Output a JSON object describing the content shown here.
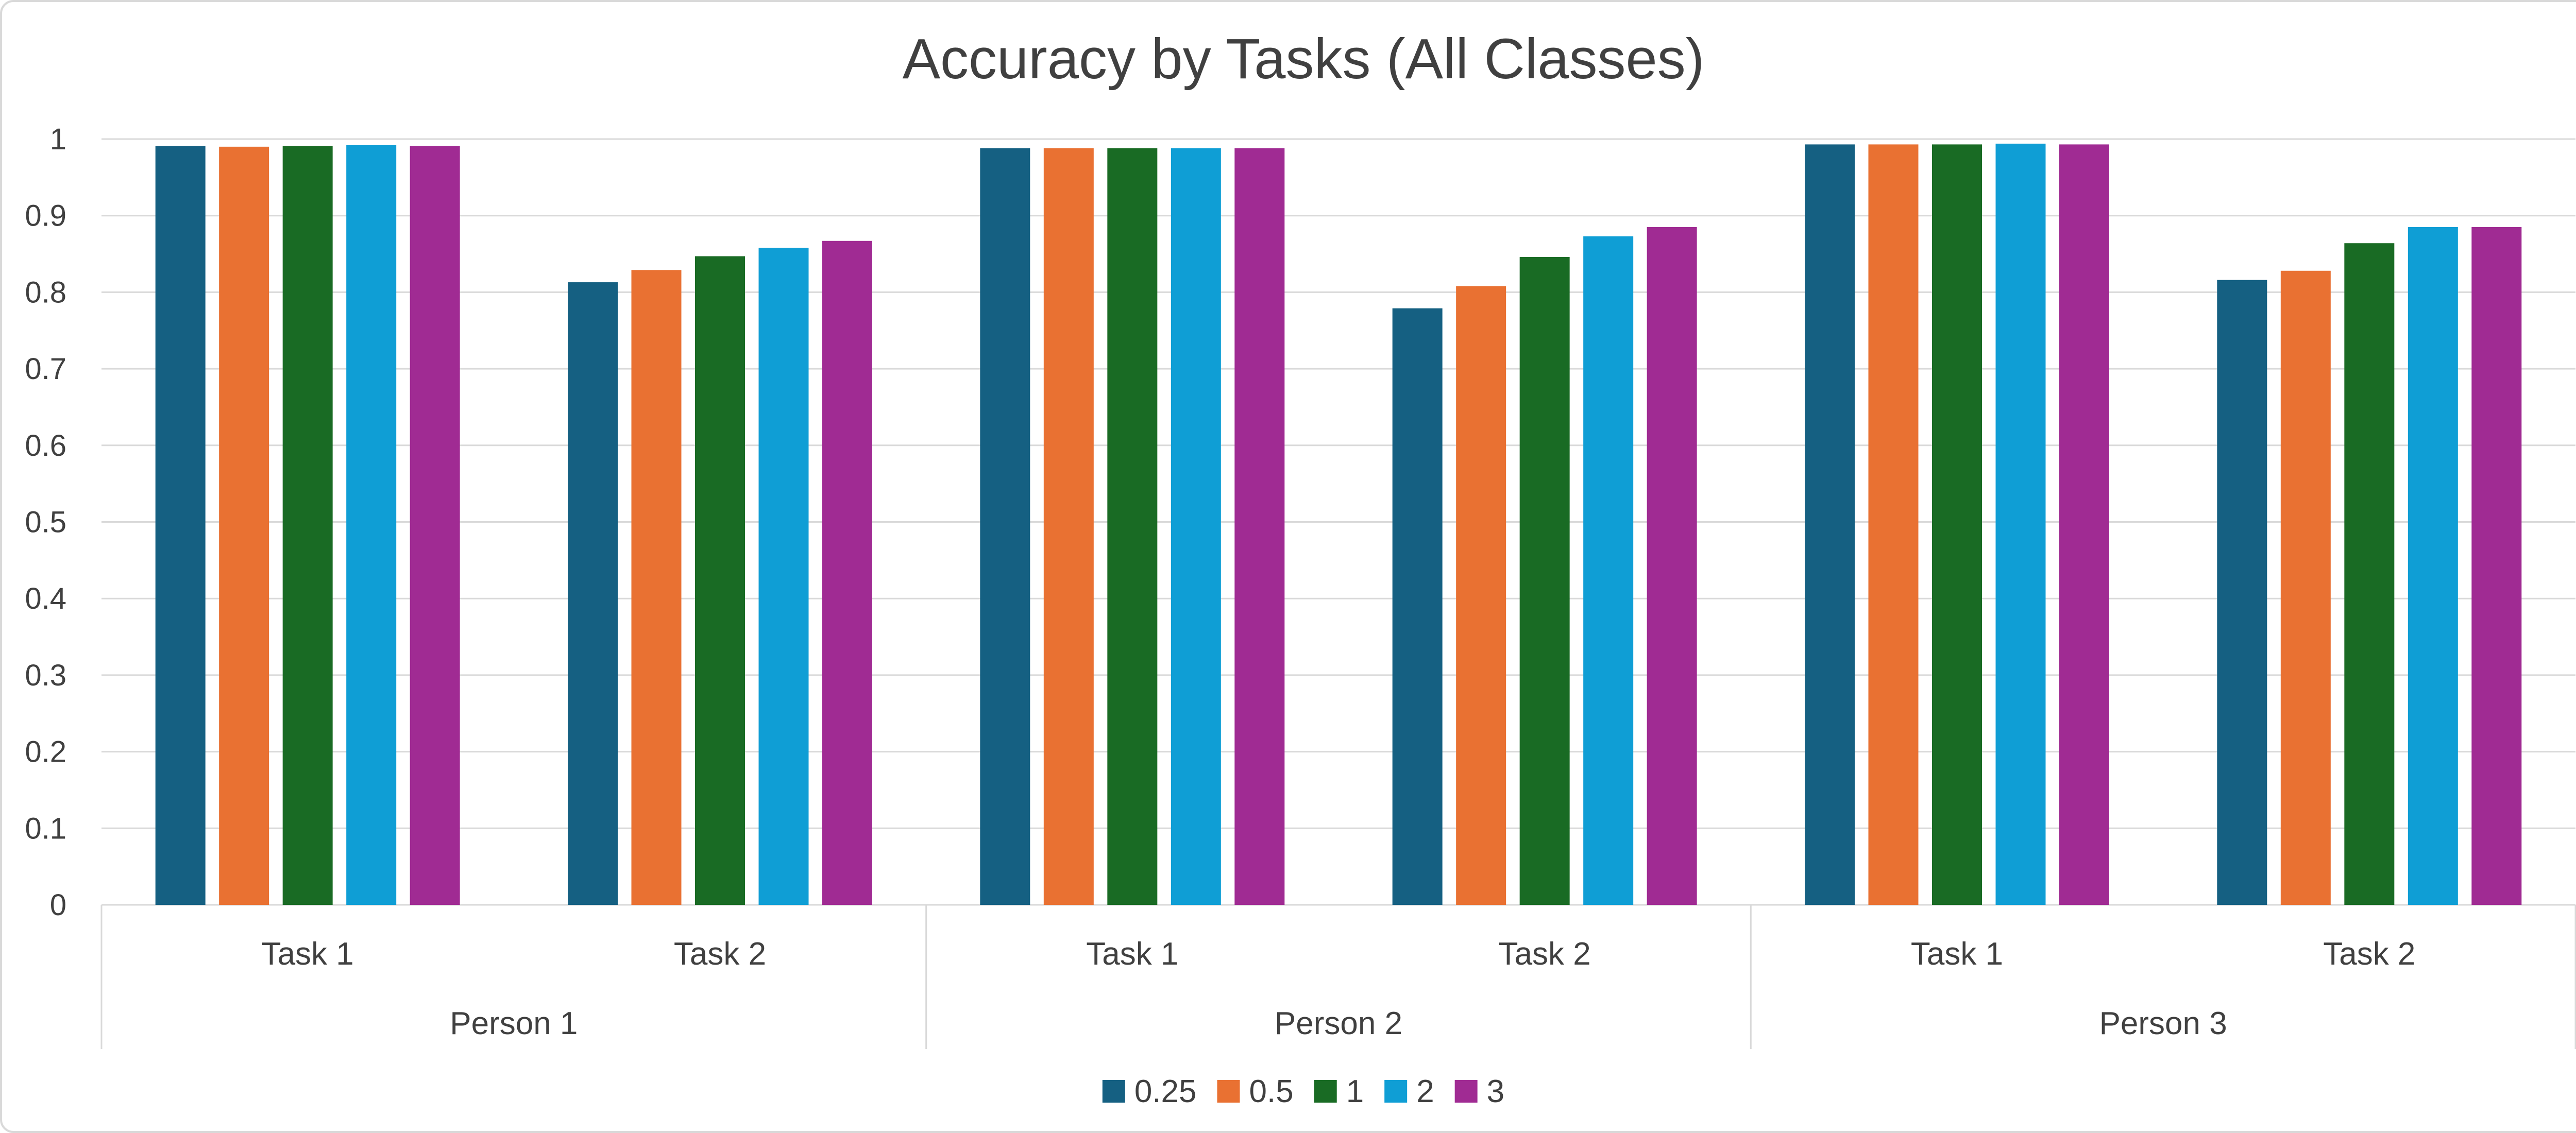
{
  "chart_data": {
    "type": "bar",
    "title": "Accuracy by Tasks (All Classes)",
    "xlabel": "",
    "ylabel": "",
    "ylim": [
      0,
      1
    ],
    "yticks": [
      "0",
      "0.1",
      "0.2",
      "0.3",
      "0.4",
      "0.5",
      "0.6",
      "0.7",
      "0.8",
      "0.9",
      "1"
    ],
    "grid": true,
    "legend_position": "bottom",
    "groups": [
      "Person 1",
      "Person 2",
      "Person 3"
    ],
    "categories": [
      "Task 1",
      "Task 2",
      "Task 1",
      "Task 2",
      "Task 1",
      "Task 2"
    ],
    "series": [
      {
        "name": "0.25",
        "color": "#156082",
        "values": [
          0.991,
          0.813,
          0.988,
          0.779,
          0.993,
          0.816
        ]
      },
      {
        "name": "0.5",
        "color": "#E97132",
        "values": [
          0.99,
          0.829,
          0.988,
          0.808,
          0.993,
          0.828
        ]
      },
      {
        "name": "1",
        "color": "#196B24",
        "values": [
          0.991,
          0.847,
          0.988,
          0.846,
          0.993,
          0.864
        ]
      },
      {
        "name": "2",
        "color": "#0F9ED5",
        "values": [
          0.992,
          0.858,
          0.988,
          0.873,
          0.994,
          0.885
        ]
      },
      {
        "name": "3",
        "color": "#A02B93",
        "values": [
          0.991,
          0.867,
          0.988,
          0.885,
          0.993,
          0.885
        ]
      }
    ]
  }
}
